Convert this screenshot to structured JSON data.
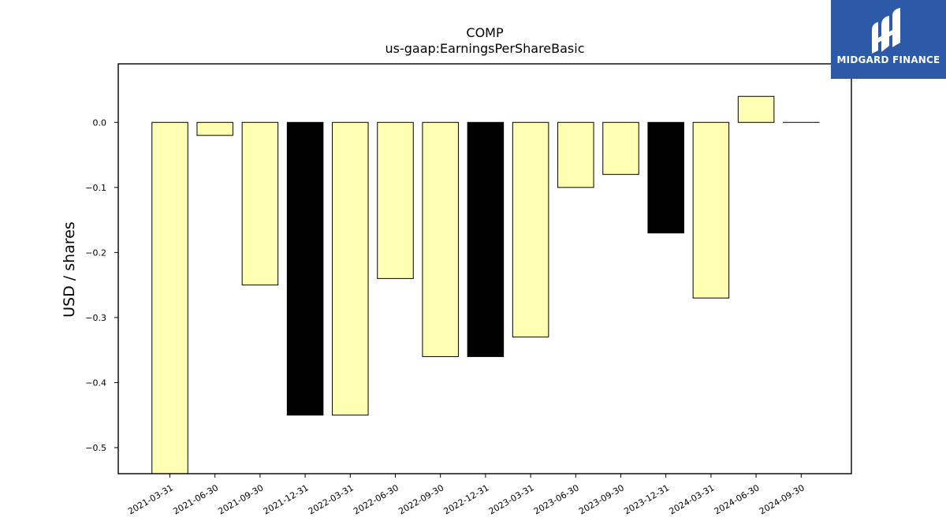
{
  "chart_data": {
    "type": "bar",
    "title": "COMP",
    "subtitle": "us-gaap:EarningsPerShareBasic",
    "xlabel": "",
    "ylabel": "USD / shares",
    "ylim": [
      -0.54,
      0.09
    ],
    "yticks": [
      "0.0",
      "−0.1",
      "−0.2",
      "−0.3",
      "−0.4",
      "−0.5"
    ],
    "ytick_values": [
      0,
      -0.1,
      -0.2,
      -0.3,
      -0.4,
      -0.5
    ],
    "categories": [
      "2021-03-31",
      "2021-06-30",
      "2021-09-30",
      "2021-12-31",
      "2022-03-31",
      "2022-06-30",
      "2022-09-30",
      "2022-12-31",
      "2023-03-31",
      "2023-06-30",
      "2023-09-30",
      "2023-12-31",
      "2024-03-31",
      "2024-06-30",
      "2024-09-30"
    ],
    "values": [
      -0.56,
      -0.02,
      -0.25,
      -0.45,
      -0.45,
      -0.24,
      -0.36,
      -0.36,
      -0.33,
      -0.1,
      -0.08,
      -0.17,
      -0.27,
      0.04,
      0.0
    ],
    "bar_colors": [
      "#ffffb3",
      "#ffffb3",
      "#ffffb3",
      "#000000",
      "#ffffb3",
      "#ffffb3",
      "#ffffb3",
      "#000000",
      "#ffffb3",
      "#ffffb3",
      "#ffffb3",
      "#000000",
      "#ffffb3",
      "#ffffb3",
      "#ffffb3"
    ],
    "grid": false,
    "legend": "none"
  },
  "logo": {
    "text": "MIDGARD FINANCE",
    "color": "#2d5aa8"
  }
}
